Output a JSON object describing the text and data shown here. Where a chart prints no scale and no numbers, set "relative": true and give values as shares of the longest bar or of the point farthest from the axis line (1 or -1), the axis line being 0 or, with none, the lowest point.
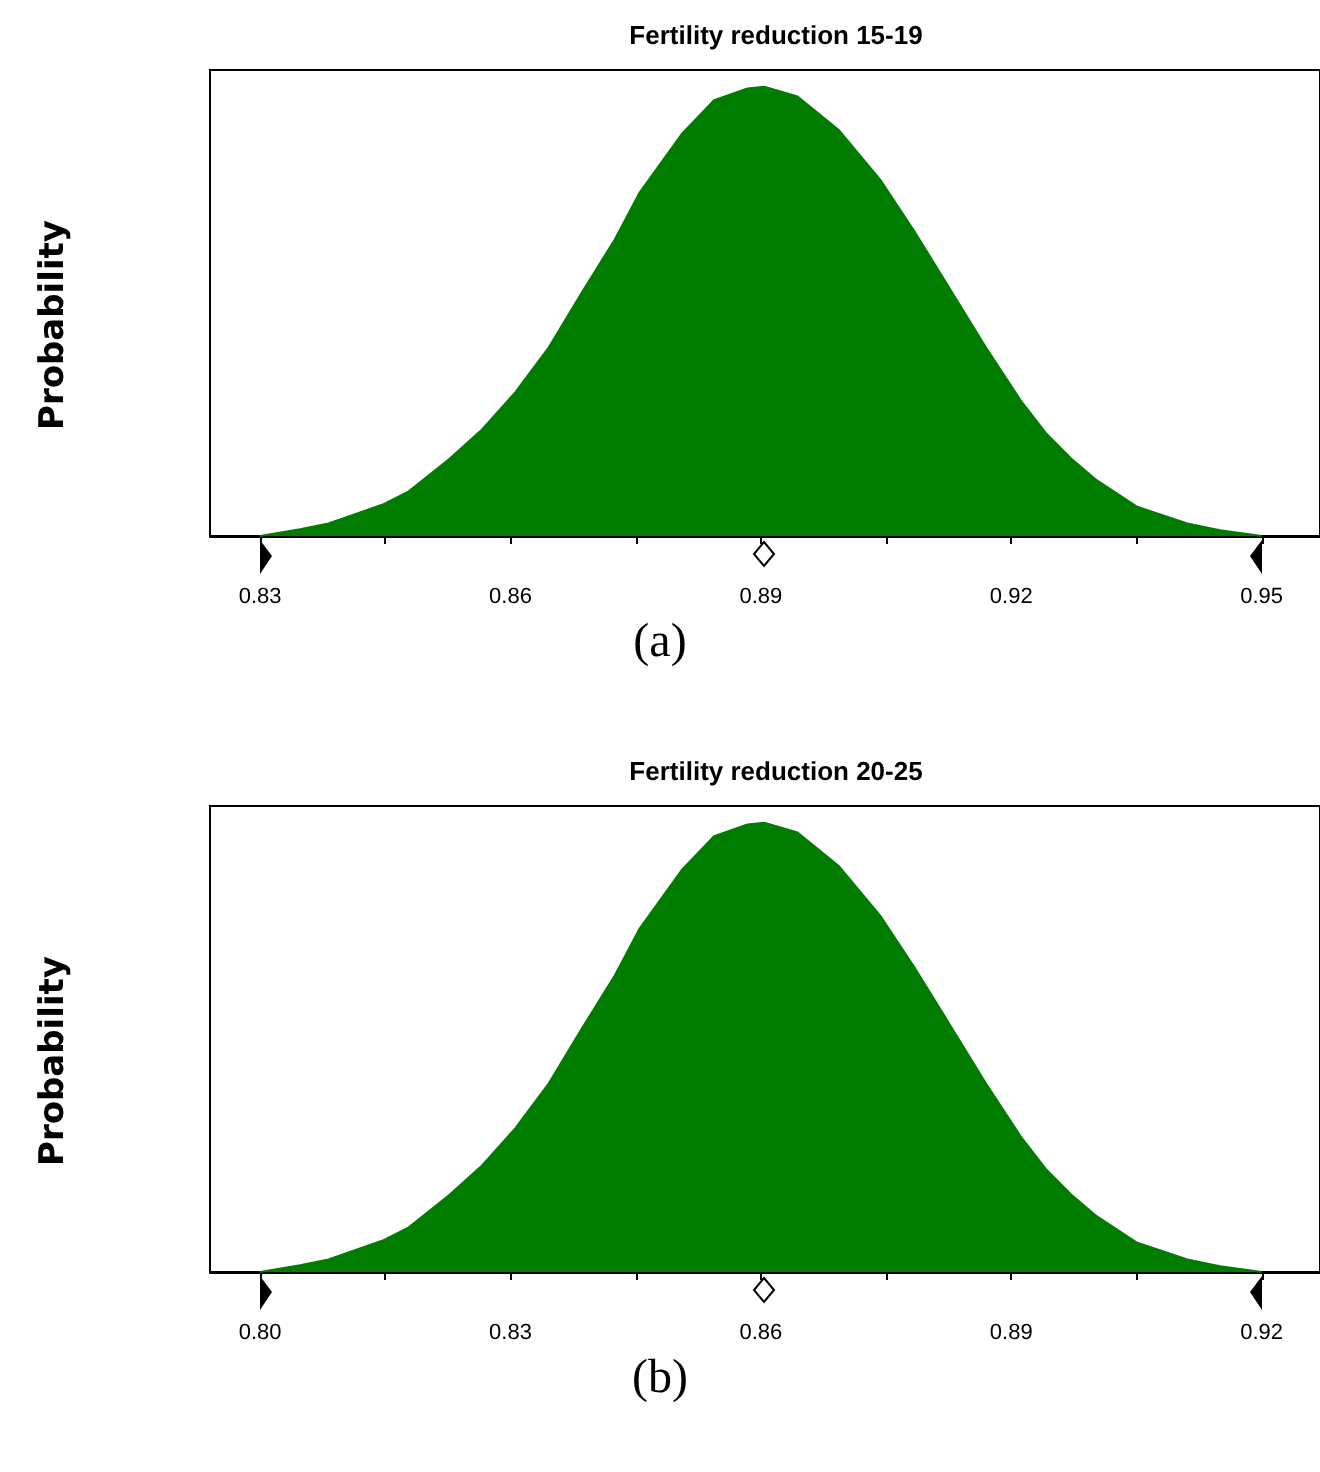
{
  "chart_data": [
    {
      "type": "area",
      "title": "Fertility reduction 15-19",
      "ylabel": "Probability",
      "relative": true,
      "annotations": [
        "(a)"
      ],
      "x": [
        0.83,
        0.8348,
        0.8382,
        0.8447,
        0.8477,
        0.8526,
        0.8566,
        0.8606,
        0.8646,
        0.8685,
        0.8725,
        0.8755,
        0.8805,
        0.8844,
        0.8884,
        0.8904,
        0.8944,
        0.8993,
        0.9043,
        0.9083,
        0.9123,
        0.9172,
        0.9212,
        0.9242,
        0.9272,
        0.9301,
        0.9351,
        0.9411,
        0.945,
        0.95
      ],
      "series": [
        {
          "color": "#007c00",
          "values": [
            0,
            0.015,
            0.028,
            0.07,
            0.098,
            0.17,
            0.237,
            0.32,
            0.42,
            0.54,
            0.66,
            0.765,
            0.894,
            0.97,
            0.996,
            1,
            0.978,
            0.904,
            0.793,
            0.681,
            0.561,
            0.413,
            0.3,
            0.228,
            0.172,
            0.126,
            0.065,
            0.028,
            0.013,
            0
          ]
        }
      ],
      "xlim": [
        0.824,
        0.957
      ],
      "xticks": [
        0.83,
        {
          "value": 0.845,
          "label": null
        },
        0.86,
        {
          "value": 0.875,
          "label": null
        },
        0.89,
        {
          "value": 0.905,
          "label": null
        },
        0.92,
        {
          "value": 0.935,
          "label": null
        },
        0.95
      ]
    },
    {
      "type": "area",
      "title": "Fertility reduction 20-25",
      "ylabel": "Probability",
      "relative": true,
      "annotations": [
        "(b)"
      ],
      "x": [
        0.8,
        0.8048,
        0.8082,
        0.8147,
        0.8177,
        0.8226,
        0.8266,
        0.8306,
        0.8346,
        0.8385,
        0.8425,
        0.8455,
        0.8505,
        0.8544,
        0.8584,
        0.8604,
        0.8644,
        0.8693,
        0.8743,
        0.8783,
        0.8823,
        0.8872,
        0.8912,
        0.8942,
        0.8972,
        0.9001,
        0.9051,
        0.9111,
        0.915,
        0.92
      ],
      "series": [
        {
          "color": "#007c00",
          "values": [
            0,
            0.015,
            0.028,
            0.07,
            0.098,
            0.17,
            0.237,
            0.32,
            0.42,
            0.54,
            0.66,
            0.765,
            0.894,
            0.97,
            0.996,
            1,
            0.978,
            0.904,
            0.793,
            0.681,
            0.561,
            0.413,
            0.3,
            0.228,
            0.172,
            0.126,
            0.065,
            0.028,
            0.013,
            0
          ]
        }
      ],
      "xlim": [
        0.794,
        0.927
      ],
      "xticks": [
        {
          "value": 0.8,
          "label": "0.80"
        },
        {
          "value": 0.815,
          "label": null
        },
        0.83,
        {
          "value": 0.845,
          "label": null
        },
        0.86,
        {
          "value": 0.875,
          "label": null
        },
        0.89,
        {
          "value": 0.905,
          "label": null
        },
        0.92
      ]
    }
  ]
}
